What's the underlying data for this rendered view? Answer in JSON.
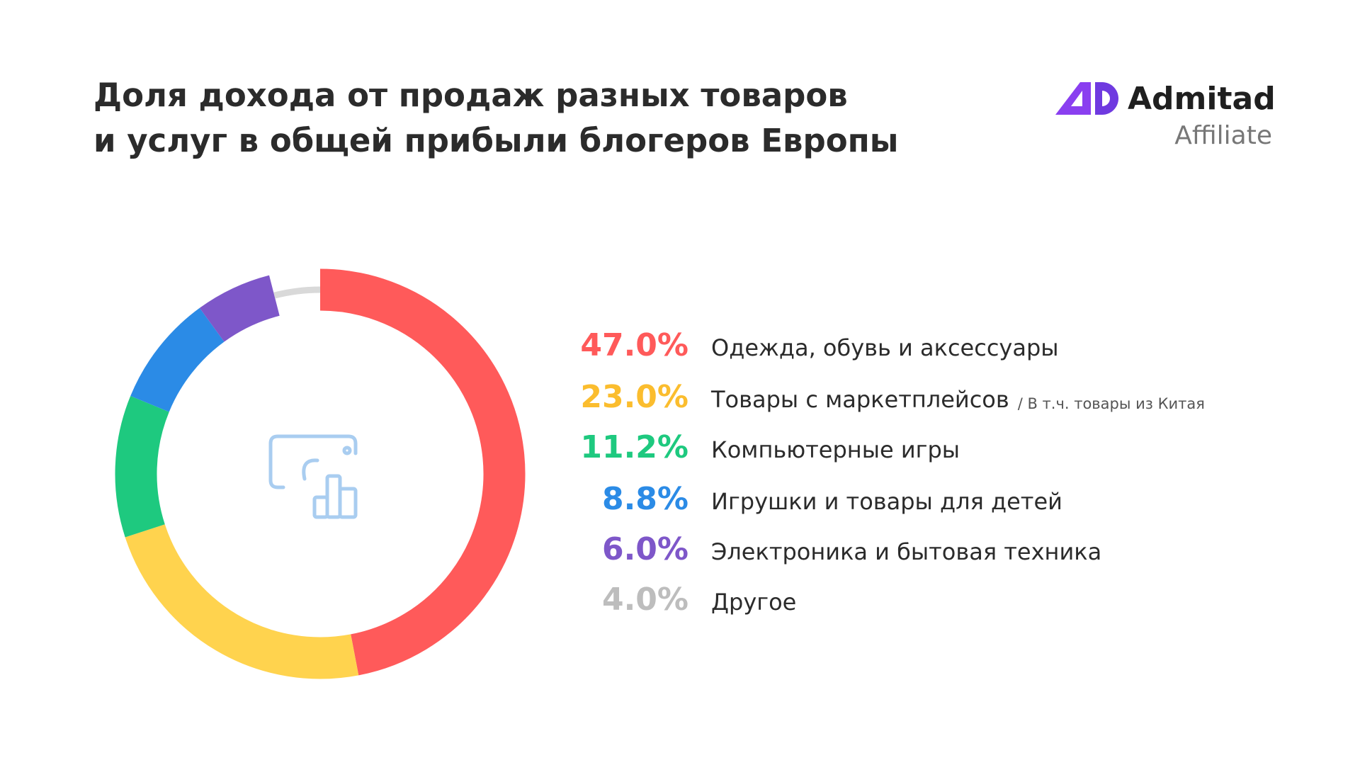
{
  "chart_data": {
    "type": "donut",
    "title": [
      "Доля дохода от продаж разных товаров",
      "и услуг в общей прибыли блогеров Европы"
    ],
    "categories": [
      "Одежда, обувь и аксессуары",
      "Товары с маркетплейсов",
      "Компьютерные игры",
      "Игрушки и товары для детей",
      "Электроника и бытовая техника",
      "Другое"
    ],
    "annotation": "/ В т.ч. товары из Китая",
    "values": [
      47.0,
      23.0,
      11.2,
      8.8,
      6.0,
      4.0
    ],
    "value_labels": [
      "47.0%",
      "23.0%",
      "11.2%",
      "8.8%",
      "6.0%",
      "4.0%"
    ],
    "colors": [
      "#ff5a5a",
      "#ffd34e",
      "#1ec97f",
      "#2b8be6",
      "#7e57c9",
      "#d9d9d9"
    ],
    "label_colors": [
      "#ff5a5a",
      "#fbbd2e",
      "#1ec97f",
      "#2b8be6",
      "#7e57c9",
      "#bdbdbd"
    ]
  },
  "logo": {
    "name": "Admitad",
    "tagline": "Affiliate"
  }
}
